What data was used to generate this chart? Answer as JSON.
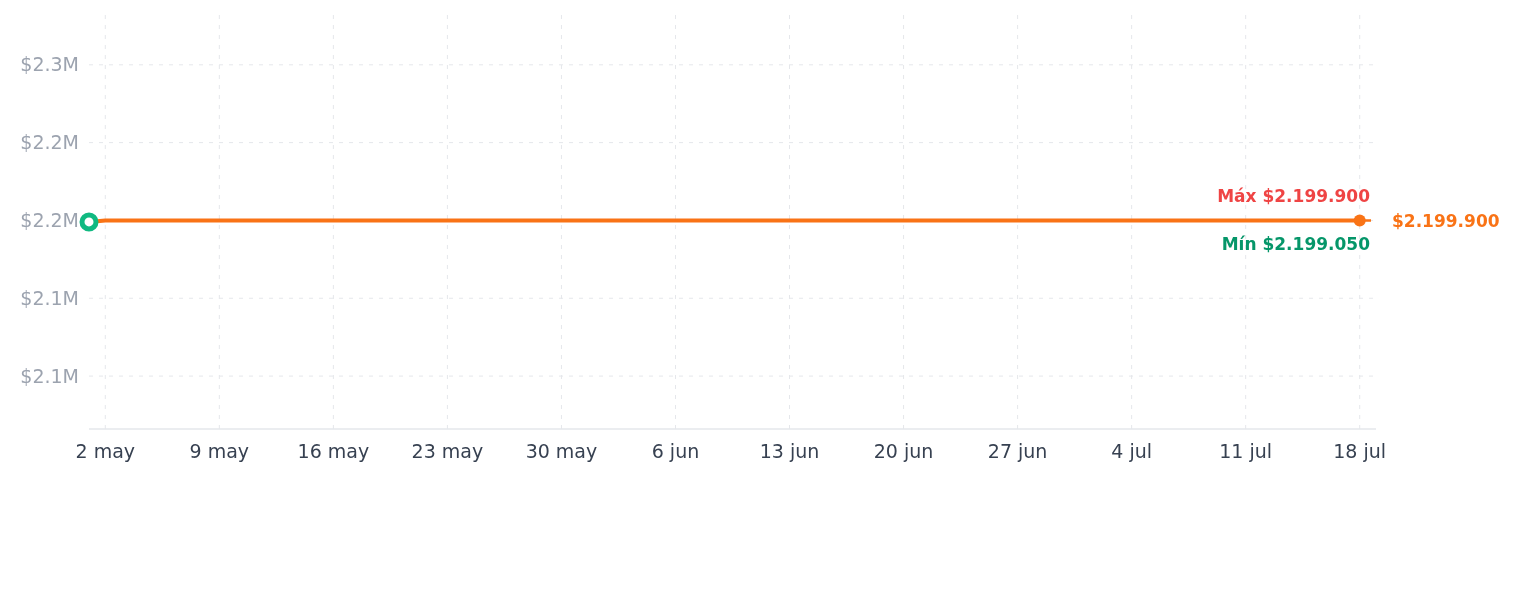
{
  "chart_data": {
    "type": "line",
    "x": [
      "--05-01",
      "--05-02",
      "--07-18"
    ],
    "series": [
      {
        "color": "#f97316",
        "values": [
          2199050,
          2199900,
          2199900
        ]
      }
    ],
    "xlim": [
      "--05-01",
      "--07-19"
    ],
    "xticks": [
      {
        "value": "--05-02",
        "label": "2 may"
      },
      {
        "value": "--05-09",
        "label": "9 may"
      },
      {
        "value": "--05-16",
        "label": "16 may"
      },
      {
        "value": "--05-23",
        "label": "23 may"
      },
      {
        "value": "--05-30",
        "label": "30 may"
      },
      {
        "value": "--06-06",
        "label": "6 jun"
      },
      {
        "value": "--06-13",
        "label": "13 jun"
      },
      {
        "value": "--06-20",
        "label": "20 jun"
      },
      {
        "value": "--06-27",
        "label": "27 jun"
      },
      {
        "value": "--07-04",
        "label": "4 jul"
      },
      {
        "value": "--07-11",
        "label": "11 jul"
      },
      {
        "value": "--07-18",
        "label": "18 jul"
      }
    ],
    "ylim": [
      2066000,
      2332000
    ],
    "yticks": [
      {
        "value": 2100000,
        "label": "$2.1M"
      },
      {
        "value": 2150000,
        "label": "$2.1M"
      },
      {
        "value": 2200000,
        "label": "$2.2M"
      },
      {
        "value": 2250000,
        "label": "$2.2M"
      },
      {
        "value": 2300000,
        "label": "$2.3M"
      }
    ],
    "grid": true,
    "ref_lines": [
      {
        "axis": "y",
        "value": 2199900,
        "color": "#f97316",
        "line_style": "dashed"
      }
    ],
    "annotations": [
      "Máx $2.199.900",
      "Mín $2.199.050",
      "$2.199.900"
    ]
  }
}
